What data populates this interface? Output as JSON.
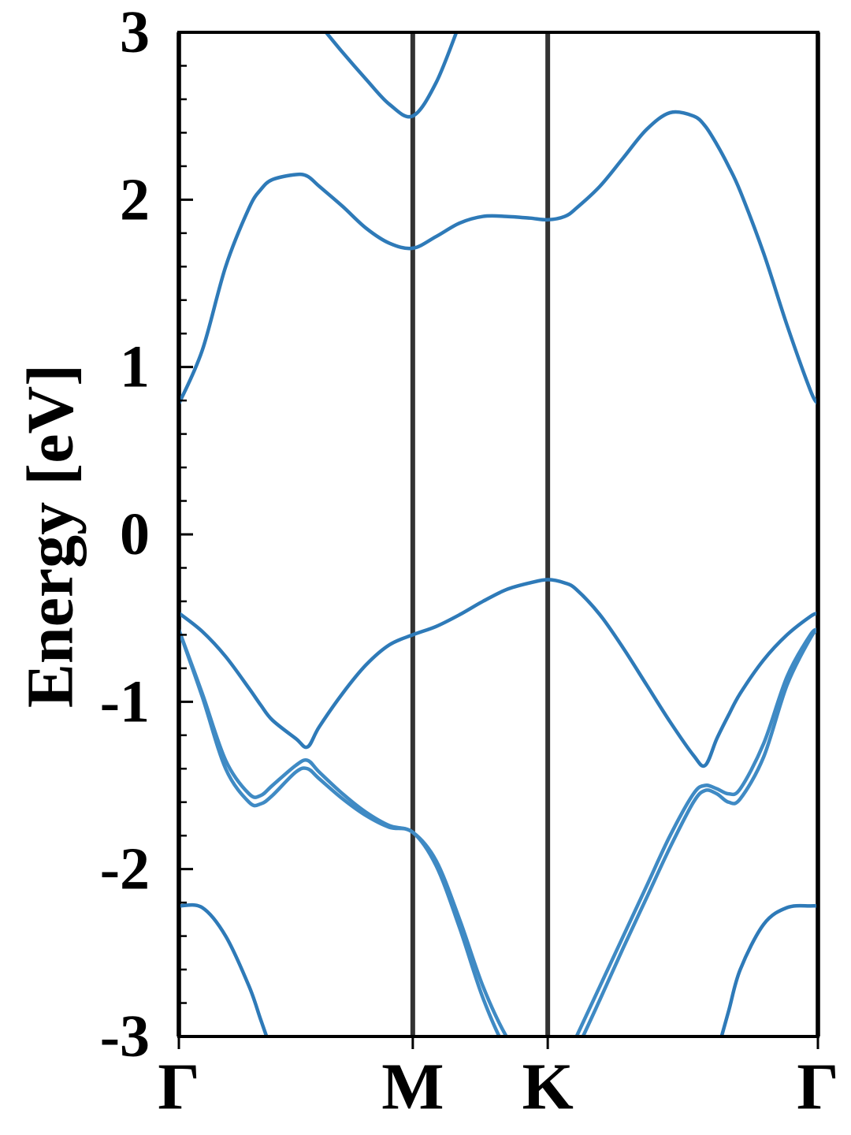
{
  "chart_data": {
    "type": "line",
    "ylabel": "Energy [eV]",
    "ylim": [
      -3,
      3
    ],
    "yticks": [
      -3,
      -2,
      -1,
      0,
      1,
      2,
      3
    ],
    "yminorticks": [
      -2.8,
      -2.6,
      -2.4,
      -2.2,
      -1.8,
      -1.6,
      -1.4,
      -1.2,
      -0.8,
      -0.6,
      -0.4,
      -0.2,
      0.2,
      0.4,
      0.6,
      0.8,
      1.2,
      1.4,
      1.6,
      1.8,
      2.2,
      2.4,
      2.6,
      2.8
    ],
    "xlim": [
      0,
      2.732
    ],
    "xticks": [
      {
        "value": 0,
        "label": "Γ"
      },
      {
        "value": 1,
        "label": "M"
      },
      {
        "value": 1.577,
        "label": "K"
      },
      {
        "value": 2.732,
        "label": "Γ"
      }
    ],
    "xgrid": true,
    "xgrid_color": "#333333",
    "x": [
      0,
      0.1,
      0.2,
      0.3,
      0.35,
      0.4,
      0.5,
      0.55,
      0.6,
      0.7,
      0.8,
      0.9,
      1.0,
      1.1,
      1.2,
      1.3,
      1.4,
      1.5,
      1.577,
      1.65,
      1.7,
      1.8,
      1.9,
      2.0,
      2.1,
      2.2,
      2.25,
      2.3,
      2.35,
      2.4,
      2.5,
      2.6,
      2.7,
      2.732
    ],
    "series": [
      {
        "color": "#2e7ab8",
        "values": [
          0.78,
          1.1,
          1.6,
          1.95,
          2.06,
          2.12,
          2.15,
          2.14,
          2.08,
          1.96,
          1.83,
          1.74,
          1.71,
          1.78,
          1.86,
          1.9,
          1.9,
          1.89,
          1.88,
          1.9,
          1.95,
          2.08,
          2.25,
          2.42,
          2.52,
          2.5,
          2.44,
          2.33,
          2.2,
          2.05,
          1.68,
          1.25,
          0.86,
          0.78
        ]
      },
      {
        "color": "#2e7ab8",
        "values": [
          null,
          null,
          null,
          null,
          null,
          null,
          null,
          null,
          3.05,
          2.88,
          2.72,
          2.57,
          2.5,
          2.7,
          3.05,
          null,
          null,
          null,
          null,
          null,
          null,
          null,
          null,
          null,
          null,
          null,
          null,
          null,
          null,
          null,
          null,
          null,
          null,
          null
        ]
      },
      {
        "color": "#2e7ab8",
        "values": [
          -0.47,
          -0.58,
          -0.73,
          -0.92,
          -1.02,
          -1.11,
          -1.22,
          -1.27,
          -1.15,
          -0.95,
          -0.78,
          -0.66,
          -0.6,
          -0.55,
          -0.48,
          -0.4,
          -0.33,
          -0.29,
          -0.27,
          -0.29,
          -0.33,
          -0.48,
          -0.68,
          -0.9,
          -1.12,
          -1.32,
          -1.38,
          -1.22,
          -1.08,
          -0.95,
          -0.75,
          -0.6,
          -0.49,
          -0.47
        ]
      },
      {
        "color": "#3f8ac4",
        "values": [
          -0.57,
          -0.95,
          -1.35,
          -1.55,
          -1.56,
          -1.5,
          -1.38,
          -1.35,
          -1.42,
          -1.55,
          -1.66,
          -1.74,
          -1.78,
          -1.95,
          -2.3,
          -2.7,
          -3.0,
          -3.2,
          -3.25,
          -3.15,
          -3.0,
          -2.7,
          -2.4,
          -2.1,
          -1.8,
          -1.55,
          -1.5,
          -1.52,
          -1.55,
          -1.52,
          -1.25,
          -0.85,
          -0.6,
          -0.57
        ]
      },
      {
        "color": "#3f8ac4",
        "values": [
          -0.57,
          -0.97,
          -1.4,
          -1.6,
          -1.61,
          -1.56,
          -1.42,
          -1.4,
          -1.46,
          -1.58,
          -1.68,
          -1.75,
          -1.78,
          -1.98,
          -2.35,
          -2.77,
          -3.08,
          -3.25,
          -3.28,
          -3.2,
          -3.08,
          -2.78,
          -2.47,
          -2.17,
          -1.87,
          -1.6,
          -1.53,
          -1.55,
          -1.6,
          -1.58,
          -1.33,
          -0.9,
          -0.62,
          -0.57
        ]
      },
      {
        "color": "#2e7ab8",
        "values": [
          -2.22,
          -2.23,
          -2.4,
          -2.7,
          -2.9,
          -3.1,
          -3.5,
          null,
          null,
          null,
          null,
          null,
          null,
          null,
          null,
          null,
          null,
          null,
          null,
          null,
          null,
          null,
          null,
          null,
          null,
          null,
          null,
          -3.1,
          -2.85,
          -2.6,
          -2.33,
          -2.23,
          -2.22,
          -2.22
        ]
      }
    ]
  }
}
